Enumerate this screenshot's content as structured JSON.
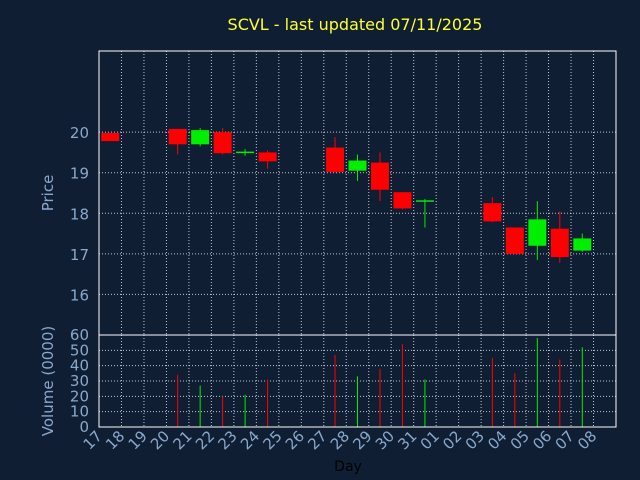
{
  "chart_data": [
    {
      "type": "candlestick",
      "title": "SCVL - last updated 07/11/2025",
      "ylabel": "Price",
      "ylim": [
        15,
        22
      ],
      "yticks": [
        16,
        17,
        18,
        19,
        20
      ],
      "categories": [
        "17",
        "18",
        "19",
        "20",
        "21",
        "22",
        "23",
        "24",
        "25",
        "26",
        "27",
        "28",
        "29",
        "30",
        "31",
        "01",
        "02",
        "03",
        "04",
        "05",
        "06",
        "07",
        "08"
      ],
      "candles": [
        {
          "x": "17",
          "open": 19.98,
          "high": 19.98,
          "low": 19.78,
          "close": 19.78
        },
        {
          "x": "20",
          "open": 20.08,
          "high": 20.08,
          "low": 19.45,
          "close": 19.7
        },
        {
          "x": "21",
          "open": 19.7,
          "high": 20.1,
          "low": 19.65,
          "close": 20.05
        },
        {
          "x": "22",
          "open": 20.0,
          "high": 20.1,
          "low": 19.45,
          "close": 19.48
        },
        {
          "x": "23",
          "open": 19.5,
          "high": 19.58,
          "low": 19.42,
          "close": 19.52
        },
        {
          "x": "24",
          "open": 19.5,
          "high": 19.55,
          "low": 19.1,
          "close": 19.28
        },
        {
          "x": "27",
          "open": 19.62,
          "high": 19.88,
          "low": 19.0,
          "close": 19.02
        },
        {
          "x": "28",
          "open": 19.05,
          "high": 19.45,
          "low": 18.8,
          "close": 19.3
        },
        {
          "x": "29",
          "open": 19.25,
          "high": 19.5,
          "low": 18.3,
          "close": 18.58
        },
        {
          "x": "30",
          "open": 18.52,
          "high": 18.52,
          "low": 18.1,
          "close": 18.12
        },
        {
          "x": "31",
          "open": 18.3,
          "high": 18.35,
          "low": 17.65,
          "close": 18.32
        },
        {
          "x": "03",
          "open": 18.25,
          "high": 18.4,
          "low": 17.78,
          "close": 17.8
        },
        {
          "x": "04",
          "open": 17.65,
          "high": 17.65,
          "low": 17.0,
          "close": 17.0
        },
        {
          "x": "05",
          "open": 17.2,
          "high": 18.3,
          "low": 16.85,
          "close": 17.85
        },
        {
          "x": "06",
          "open": 17.62,
          "high": 18.05,
          "low": 16.78,
          "close": 16.92
        },
        {
          "x": "07",
          "open": 17.08,
          "high": 17.5,
          "low": 17.05,
          "close": 17.38
        }
      ],
      "colors": {
        "up": "#00ee00",
        "down": "#ff0000"
      }
    },
    {
      "type": "bar",
      "xlabel": "Day",
      "ylabel": "Volume (0000)",
      "ylim": [
        0,
        60
      ],
      "yticks": [
        0,
        10,
        20,
        30,
        40,
        50,
        60
      ],
      "categories": [
        "17",
        "18",
        "19",
        "20",
        "21",
        "22",
        "23",
        "24",
        "25",
        "26",
        "27",
        "28",
        "29",
        "30",
        "31",
        "01",
        "02",
        "03",
        "04",
        "05",
        "06",
        "07",
        "08"
      ],
      "bars": [
        {
          "x": "20",
          "value": 34,
          "direction": "down"
        },
        {
          "x": "21",
          "value": 27,
          "direction": "up"
        },
        {
          "x": "22",
          "value": 20,
          "direction": "down"
        },
        {
          "x": "23",
          "value": 21,
          "direction": "up"
        },
        {
          "x": "24",
          "value": 31,
          "direction": "down"
        },
        {
          "x": "27",
          "value": 47,
          "direction": "down"
        },
        {
          "x": "28",
          "value": 33,
          "direction": "up"
        },
        {
          "x": "29",
          "value": 38,
          "direction": "down"
        },
        {
          "x": "30",
          "value": 54,
          "direction": "down"
        },
        {
          "x": "31",
          "value": 31,
          "direction": "up"
        },
        {
          "x": "03",
          "value": 45,
          "direction": "down"
        },
        {
          "x": "04",
          "value": 35,
          "direction": "down"
        },
        {
          "x": "05",
          "value": 58,
          "direction": "up"
        },
        {
          "x": "06",
          "value": 44,
          "direction": "down"
        },
        {
          "x": "07",
          "value": 52,
          "direction": "up"
        }
      ]
    }
  ]
}
